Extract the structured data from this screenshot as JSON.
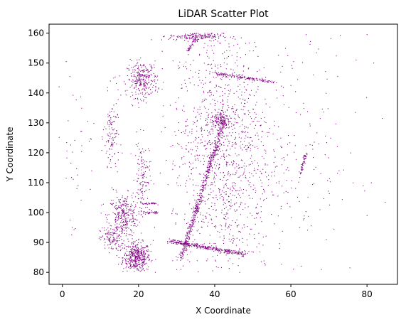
{
  "chart_data": {
    "type": "scatter",
    "title": "LiDAR Scatter Plot",
    "xlabel": "X Coordinate",
    "ylabel": "Y Coordinate",
    "xlim": [
      -3.5,
      88
    ],
    "ylim": [
      76,
      163
    ],
    "xticks": [
      0,
      20,
      40,
      60,
      80
    ],
    "yticks": [
      80,
      90,
      100,
      110,
      120,
      130,
      140,
      150,
      160
    ],
    "marker_color": "#800080",
    "marker": "small dot",
    "grid": false,
    "clusters": [
      {
        "desc": "dense blob bottom-left",
        "cx": 19.5,
        "cy": 85,
        "sx": 1.8,
        "sy": 2.5,
        "n": 450
      },
      {
        "desc": "blob lower-left",
        "cx": 16,
        "cy": 99,
        "sx": 2.0,
        "sy": 3.5,
        "n": 320
      },
      {
        "desc": "blob left lower",
        "cx": 13,
        "cy": 91,
        "sx": 1.5,
        "sy": 2,
        "n": 120
      },
      {
        "desc": "blob upper-left",
        "cx": 21,
        "cy": 144.5,
        "sx": 2.0,
        "sy": 3.0,
        "n": 300
      },
      {
        "desc": "left strip mid",
        "cx": 13,
        "cy": 125,
        "sx": 1.0,
        "sy": 7,
        "n": 120
      },
      {
        "desc": "left column",
        "cx": 21,
        "cy": 112,
        "sx": 1.0,
        "sy": 6,
        "n": 130
      },
      {
        "desc": "top cluster",
        "cx": 35,
        "cy": 159,
        "sx": 3.5,
        "sy": 0.8,
        "n": 200
      },
      {
        "desc": "mid top cluster",
        "cx": 41.5,
        "cy": 131,
        "sx": 1.2,
        "sy": 1.5,
        "n": 120
      },
      {
        "desc": "wide diffuse band",
        "cx": 42,
        "cy": 120,
        "sx": 6.5,
        "sy": 22,
        "n": 1300
      },
      {
        "desc": "right sparse",
        "cx": 63,
        "cy": 120,
        "sx": 8,
        "sy": 22,
        "n": 160
      },
      {
        "desc": "far left sparse",
        "cx": 4,
        "cy": 120,
        "sx": 3,
        "sy": 15,
        "n": 40
      }
    ],
    "lines": [
      {
        "desc": "long diagonal",
        "x0": 31,
        "y0": 84,
        "x1": 42.5,
        "y1": 131,
        "n": 500,
        "jitter": 0.35
      },
      {
        "desc": "horizontal band bottom",
        "x0": 28,
        "y0": 90.5,
        "x1": 48,
        "y1": 86,
        "n": 350,
        "jitter": 0.35
      },
      {
        "desc": "upper horizontal",
        "x0": 40,
        "y0": 146.5,
        "x1": 56,
        "y1": 143.5,
        "n": 150,
        "jitter": 0.3
      },
      {
        "desc": "right short diagonal",
        "x0": 62.5,
        "y0": 113,
        "x1": 64,
        "y1": 120,
        "n": 60,
        "jitter": 0.2
      },
      {
        "desc": "short segment",
        "x0": 21,
        "y0": 100,
        "x1": 25,
        "y1": 100,
        "n": 40,
        "jitter": 0.2
      },
      {
        "desc": "short segment 2",
        "x0": 21,
        "y0": 103,
        "x1": 25,
        "y1": 103,
        "n": 30,
        "jitter": 0.2
      },
      {
        "desc": "top right diag",
        "x0": 33,
        "y0": 154,
        "x1": 35,
        "y1": 158,
        "n": 40,
        "jitter": 0.2
      }
    ],
    "outliers": [
      {
        "x": 1,
        "y": 150.5
      },
      {
        "x": 84,
        "y": 131.5
      },
      {
        "x": 80,
        "y": 99
      },
      {
        "x": 75.5,
        "y": 81.5
      },
      {
        "x": 68,
        "y": 81
      },
      {
        "x": 79,
        "y": 109
      },
      {
        "x": 64,
        "y": 159.5
      },
      {
        "x": 80,
        "y": 159.5
      },
      {
        "x": 1,
        "y": 111.5
      },
      {
        "x": 60,
        "y": 142.5
      }
    ]
  }
}
